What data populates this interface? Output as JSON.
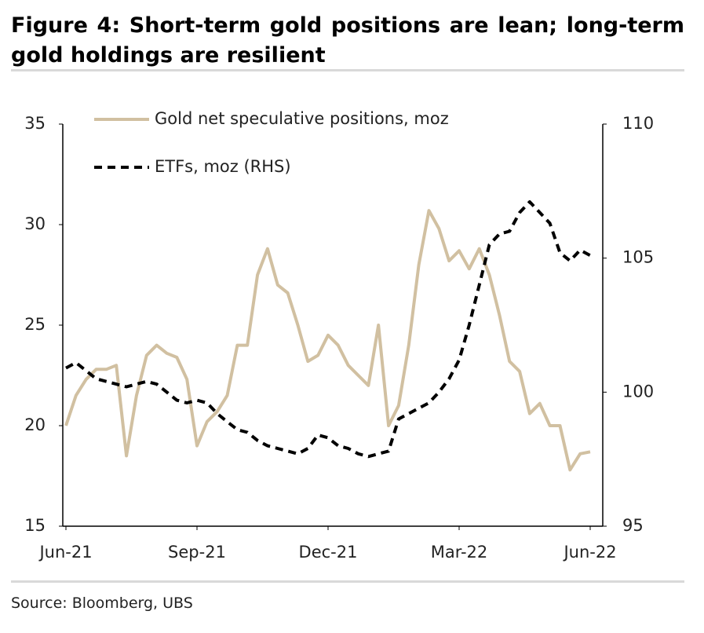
{
  "chart_data": {
    "type": "line",
    "title": "Figure 4: Short-term gold positions are lean; long-term gold holdings are resilient",
    "source": "Source: Bloomberg, UBS",
    "categories": [
      "Jun-21",
      null,
      null,
      null,
      null,
      null,
      null,
      null,
      null,
      null,
      null,
      null,
      null,
      "Sep-21",
      null,
      null,
      null,
      null,
      null,
      null,
      null,
      null,
      null,
      null,
      null,
      null,
      "Dec-21",
      null,
      null,
      null,
      null,
      null,
      null,
      null,
      null,
      null,
      null,
      null,
      null,
      "Mar-22",
      null,
      null,
      null,
      null,
      null,
      null,
      null,
      null,
      null,
      null,
      null,
      null,
      "Jun-22"
    ],
    "series": [
      {
        "name": "Gold net speculative positions, moz",
        "color": "#d1c0a1",
        "dash": false,
        "values": [
          20.0,
          21.5,
          22.3,
          22.8,
          22.8,
          23.0,
          18.5,
          21.5,
          23.5,
          24.0,
          23.6,
          23.4,
          22.3,
          19.0,
          20.2,
          20.7,
          21.5,
          24.0,
          24.0,
          27.5,
          28.8,
          27.0,
          26.6,
          25.0,
          23.2,
          23.5,
          24.5,
          24.0,
          23.0,
          22.5,
          22.0,
          25.0,
          20.0,
          21.0,
          24.0,
          28.0,
          30.7,
          29.8,
          28.2,
          28.7,
          27.8,
          28.8,
          27.5,
          25.5,
          23.2,
          22.7,
          20.6,
          21.1,
          20.0,
          20.0,
          17.8,
          18.6,
          18.7
        ]
      },
      {
        "name": "ETFs, moz (RHS)",
        "color": "#000000",
        "dash": true,
        "axis": "y2",
        "values": [
          100.9,
          101.1,
          100.8,
          100.5,
          100.4,
          100.3,
          100.2,
          100.3,
          100.4,
          100.3,
          100.0,
          99.7,
          99.6,
          99.7,
          99.6,
          99.2,
          98.9,
          98.6,
          98.5,
          98.2,
          98.0,
          97.9,
          97.8,
          97.7,
          97.9,
          98.4,
          98.3,
          98.0,
          97.9,
          97.7,
          97.6,
          97.7,
          97.8,
          99.0,
          99.2,
          99.4,
          99.6,
          100.0,
          100.5,
          101.2,
          102.5,
          104.0,
          105.5,
          105.9,
          106.0,
          106.7,
          107.1,
          106.7,
          106.3,
          105.2,
          104.9,
          105.3,
          105.1
        ]
      }
    ],
    "ylim": [
      15,
      35
    ],
    "yticks": [
      15,
      20,
      25,
      30,
      35
    ],
    "y2lim": [
      95,
      110
    ],
    "y2ticks": [
      95,
      100,
      105,
      110
    ],
    "legend": "top-left",
    "grid": false
  }
}
